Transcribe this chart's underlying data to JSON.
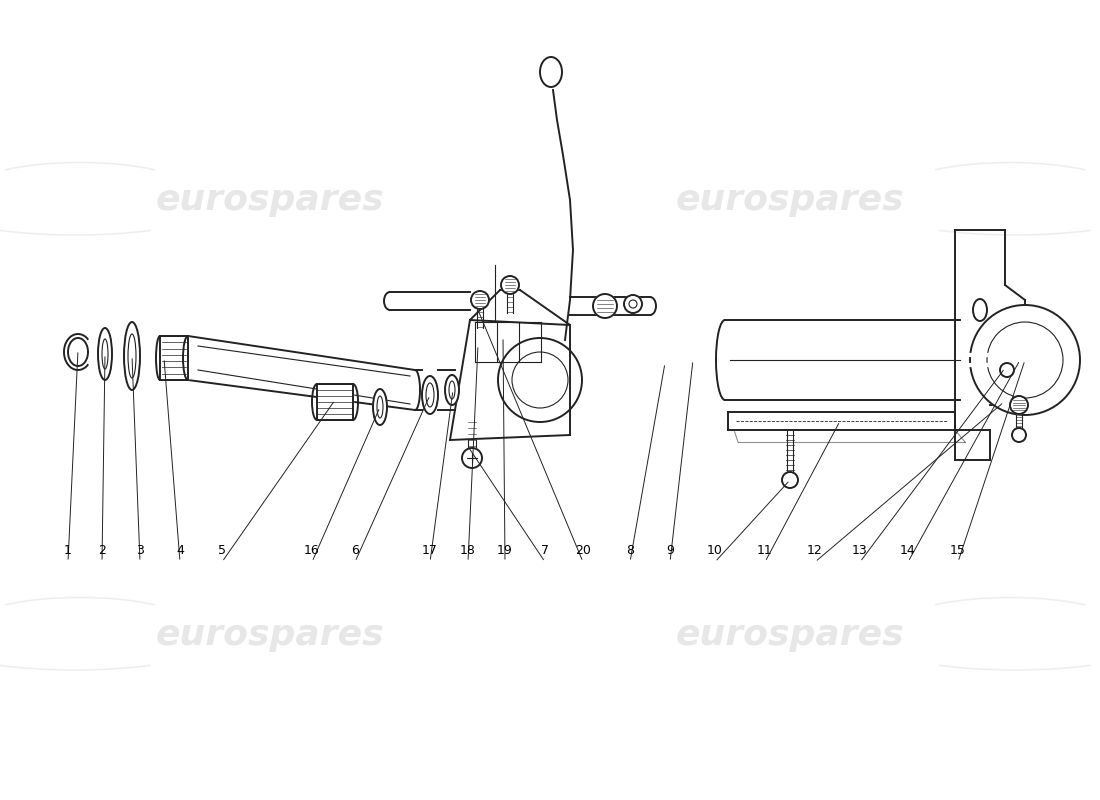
{
  "bg_color": "#ffffff",
  "line_color": "#222222",
  "wm_color": "#d0d0d0",
  "wm_alpha": 0.5,
  "figsize": [
    11.0,
    8.0
  ],
  "dpi": 100,
  "labels": [
    [
      "1",
      0.68
    ],
    [
      "2",
      1.02
    ],
    [
      "3",
      1.4
    ],
    [
      "4",
      1.8
    ],
    [
      "5",
      2.2
    ],
    [
      "16",
      3.12
    ],
    [
      "6",
      3.55
    ],
    [
      "17",
      4.3
    ],
    [
      "18",
      4.68
    ],
    [
      "19",
      5.05
    ],
    [
      "7",
      5.45
    ],
    [
      "20",
      5.83
    ],
    [
      "8",
      6.3
    ],
    [
      "9",
      6.7
    ],
    [
      "10",
      7.15
    ],
    [
      "11",
      7.65
    ],
    [
      "12",
      8.15
    ],
    [
      "13",
      8.6
    ],
    [
      "14",
      9.08
    ],
    [
      "15",
      9.58
    ]
  ]
}
